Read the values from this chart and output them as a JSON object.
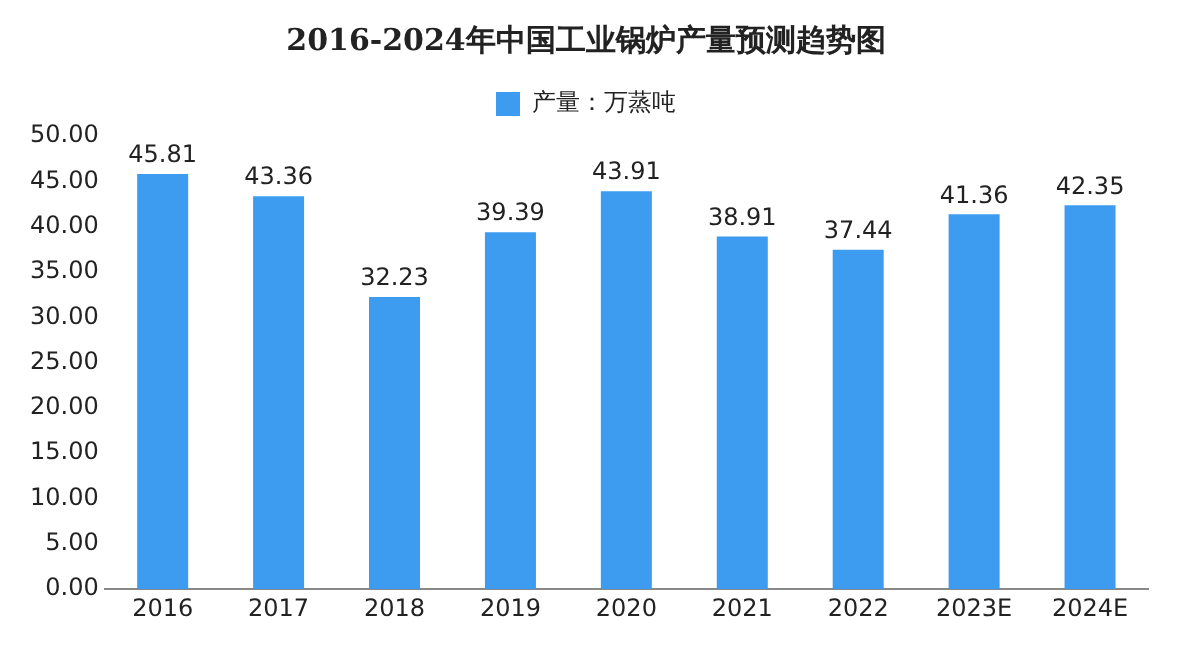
{
  "chart_data": {
    "type": "bar",
    "title": "2016-2024年中国工业锅炉产量预测趋势图",
    "categories": [
      "2016",
      "2017",
      "2018",
      "2019",
      "2020",
      "2021",
      "2022",
      "2023E",
      "2024E"
    ],
    "series": [
      {
        "name": "产量：万蒸吨",
        "color": "#3d9cf0",
        "values": [
          45.81,
          43.36,
          32.23,
          39.39,
          43.91,
          38.91,
          37.44,
          41.36,
          42.35
        ]
      }
    ],
    "ylim": [
      0,
      50
    ],
    "yticks": [
      {
        "value": 0,
        "label": "0.00"
      },
      {
        "value": 5,
        "label": "5.00"
      },
      {
        "value": 10,
        "label": "10.00"
      },
      {
        "value": 15,
        "label": "15.00"
      },
      {
        "value": 20,
        "label": "20.00"
      },
      {
        "value": 25,
        "label": "25.00"
      },
      {
        "value": 30,
        "label": "30.00"
      },
      {
        "value": 35,
        "label": "35.00"
      },
      {
        "value": 40,
        "label": "40.00"
      },
      {
        "value": 45,
        "label": "45.00"
      },
      {
        "value": 50,
        "label": "50.00"
      }
    ],
    "grid": false,
    "legend": "top",
    "data_labels": true
  }
}
